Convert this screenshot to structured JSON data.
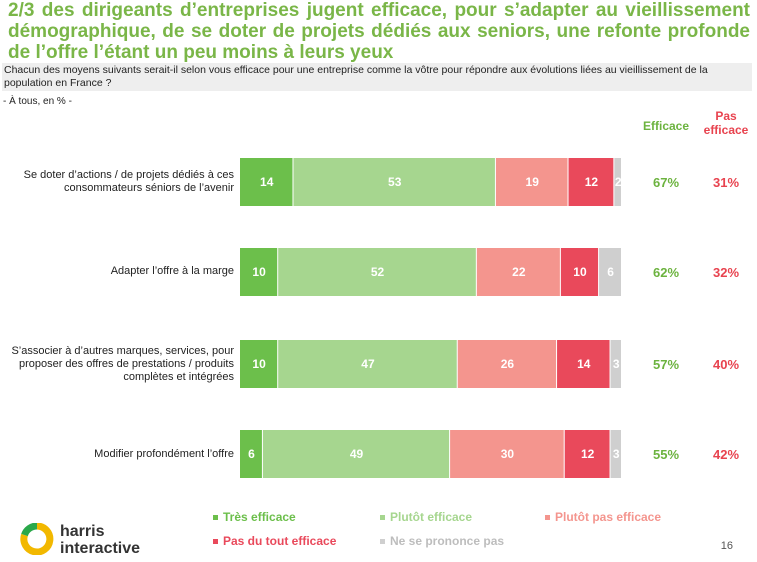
{
  "title": "2/3 des dirigeants d’entreprises jugent efficace, pour s’adapter au vieillissement démographique, de se doter de projets dédiés aux seniors, une refonte profonde de l’offre l’étant un peu moins à leurs yeux",
  "question": "Chacun des moyens suivants serait-il selon vous efficace pour une entreprise comme la vôtre pour répondre aux évolutions liées au vieillissement de la population en France ?",
  "base": "- À tous, en % -",
  "columns": {
    "efficace": "Efficace",
    "pas_efficace": "Pas efficace"
  },
  "colors": {
    "tres": "#6cbf4b",
    "plutot": "#a6d68f",
    "plutot_pas": "#f4958e",
    "pas_du_tout": "#e9495b",
    "nspp": "#cfcfcf",
    "green_text": "#6cb33f",
    "red_text": "#e8434f"
  },
  "chart_data": {
    "type": "bar",
    "orientation": "horizontal",
    "stacked": true,
    "categories": [
      "Se doter d’actions / de projets dédiés à ces consommateurs séniors de l’avenir",
      "Adapter l’offre à la marge",
      "S’associer à d’autres marques, services, pour proposer des offres de prestations / produits complètes et intégrées",
      "Modifier profondément l’offre"
    ],
    "series": [
      {
        "name": "Très efficace",
        "values": [
          14,
          10,
          10,
          6
        ]
      },
      {
        "name": "Plutôt efficace",
        "values": [
          53,
          52,
          47,
          49
        ]
      },
      {
        "name": "Plutôt pas efficace",
        "values": [
          19,
          22,
          26,
          30
        ]
      },
      {
        "name": "Pas du tout efficace",
        "values": [
          12,
          10,
          14,
          12
        ]
      },
      {
        "name": "Ne se prononce pas",
        "values": [
          2,
          6,
          3,
          3
        ]
      }
    ],
    "totals_efficace": [
      "67%",
      "62%",
      "57%",
      "55%"
    ],
    "totals_pas_efficace": [
      "31%",
      "32%",
      "40%",
      "42%"
    ],
    "xlim": [
      0,
      100
    ]
  },
  "legend": [
    "Très efficace",
    "Plutôt efficace",
    "Plutôt pas efficace",
    "Pas du tout efficace",
    "Ne se prononce pas"
  ],
  "logo": {
    "line1": "harris",
    "line2": "interactive"
  },
  "page_number": "16"
}
